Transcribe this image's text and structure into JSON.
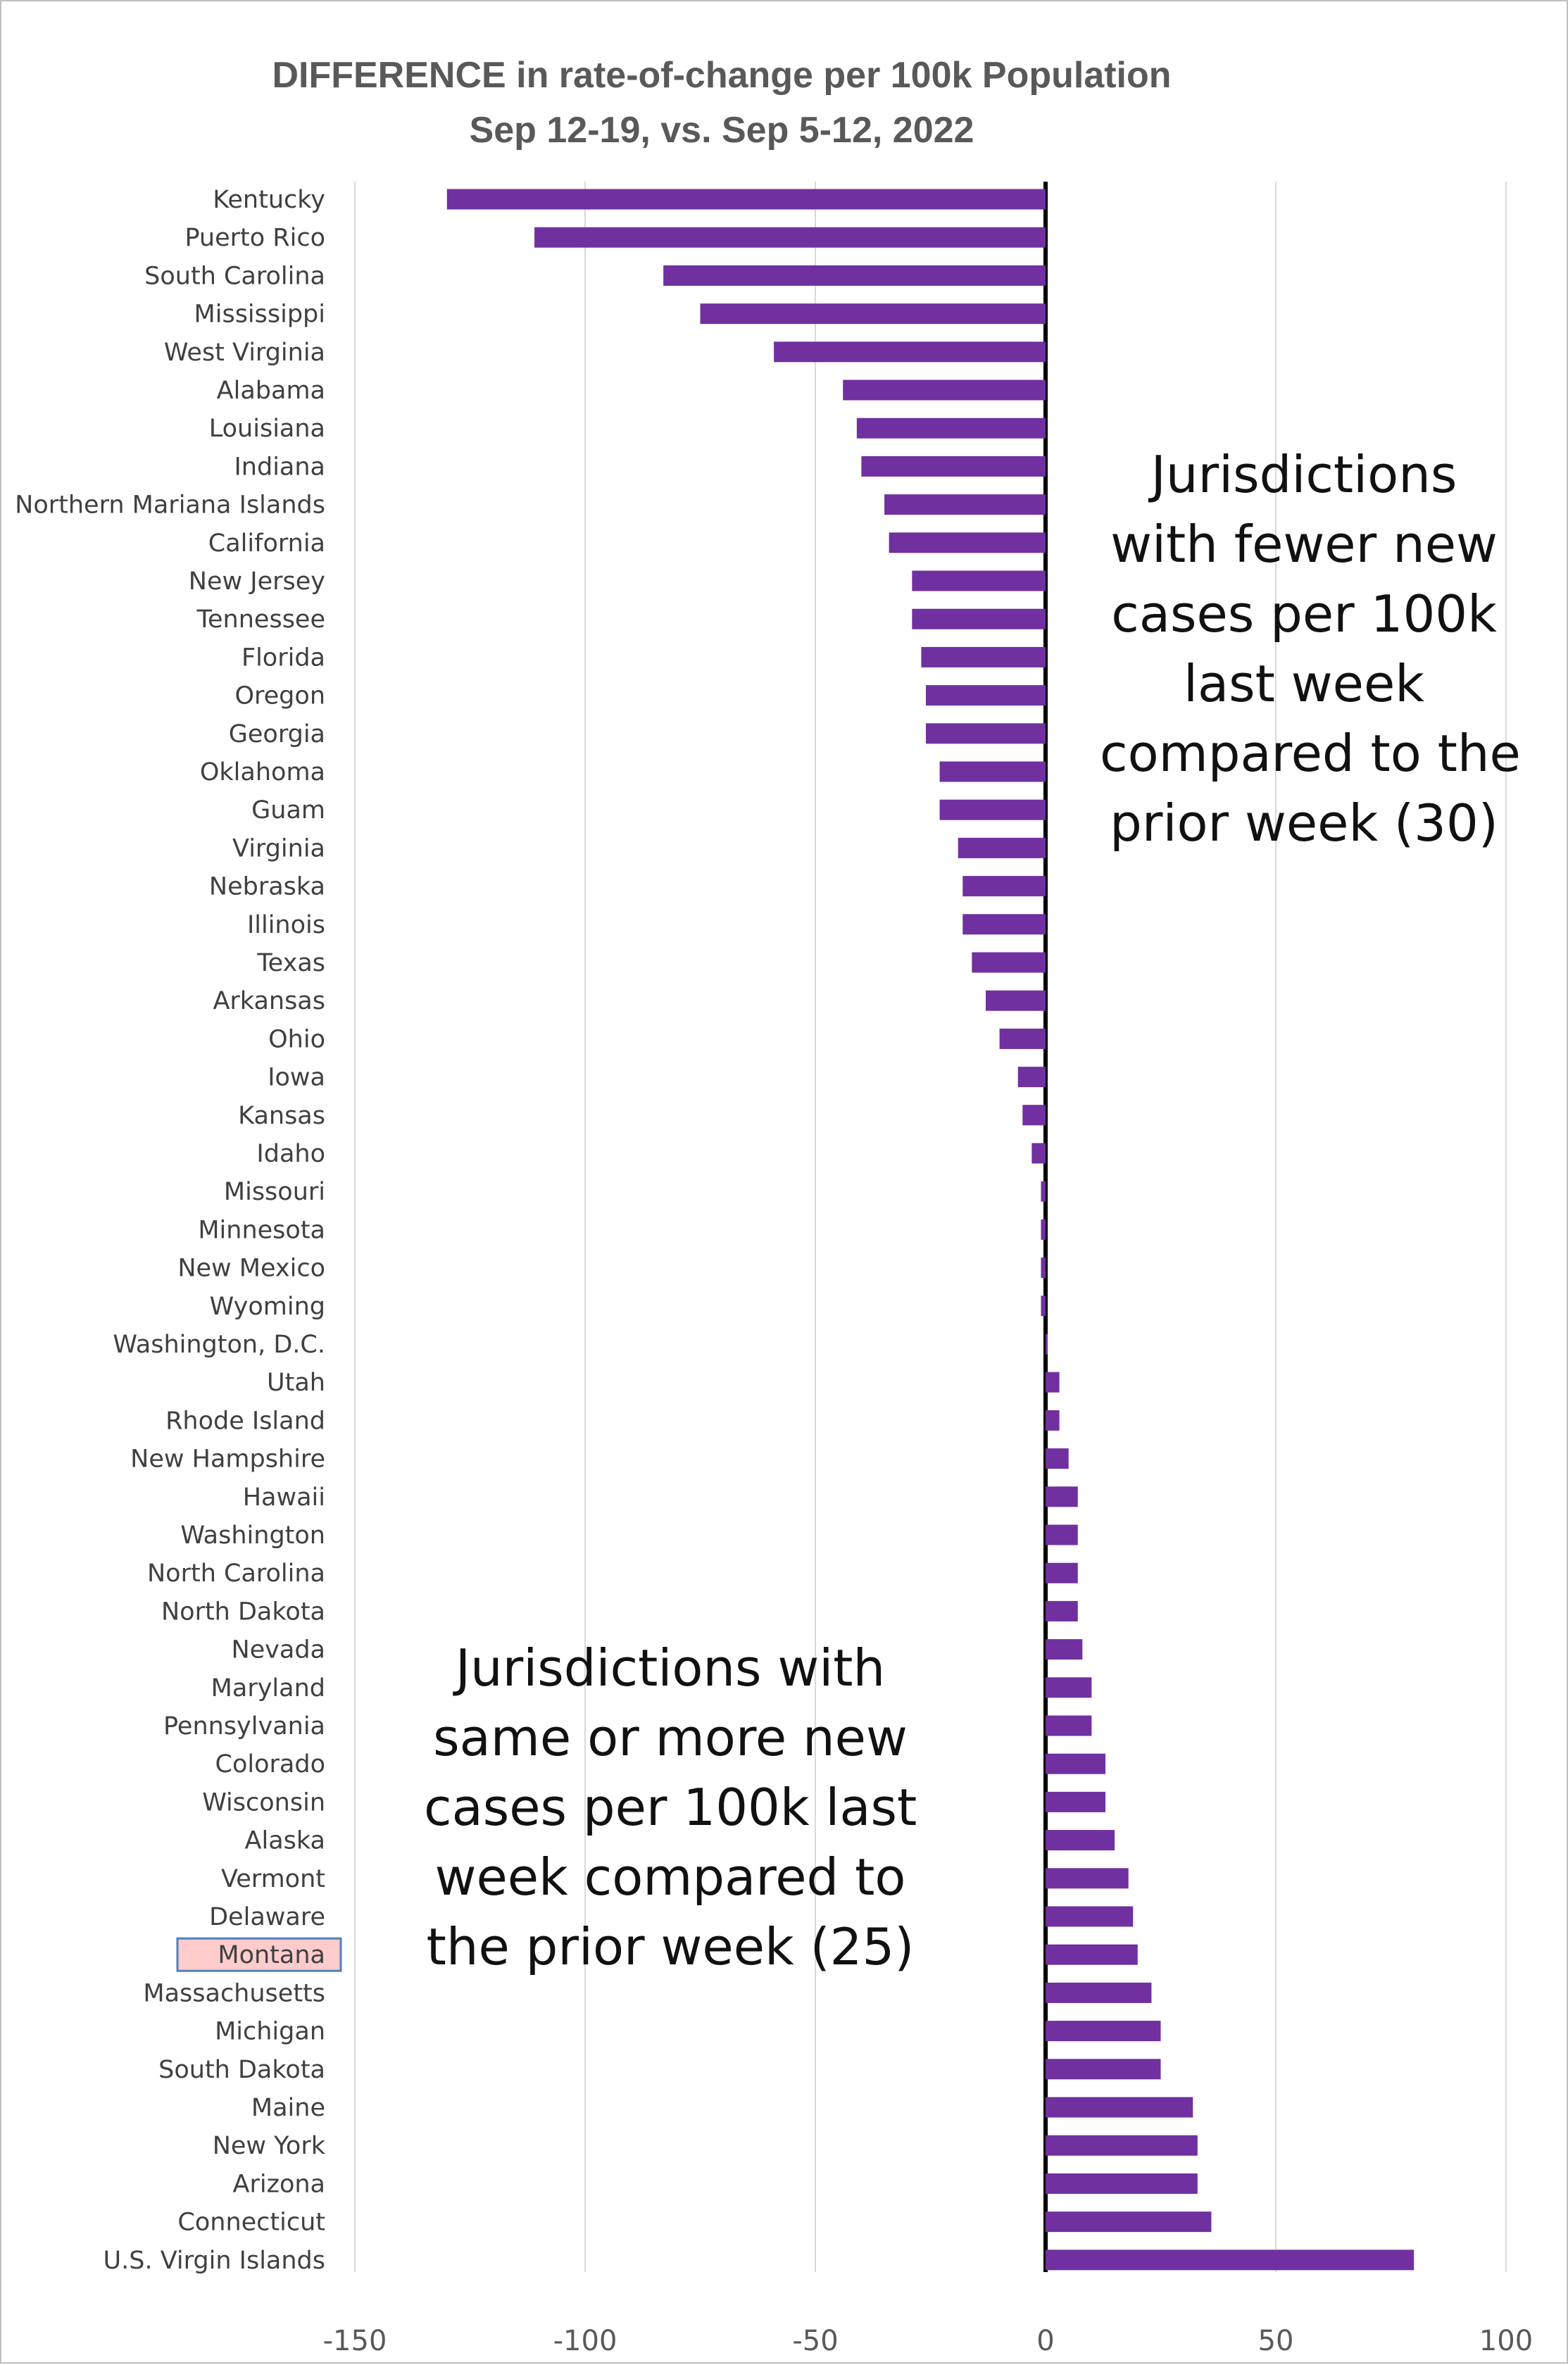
{
  "chart_data": {
    "type": "bar",
    "orientation": "horizontal",
    "title": "DIFFERENCE in rate-of-change per 100k Population",
    "subtitle": "Sep 12-19, vs. Sep 5-12, 2022",
    "xlabel": "",
    "ylabel": "",
    "xlim": [
      -150,
      100
    ],
    "xticks": [
      -150,
      -100,
      -50,
      0,
      50,
      100
    ],
    "grid": true,
    "bar_color": "#7030a0",
    "highlight_fill": "#ffcccc",
    "highlight_border": "#4f81bd",
    "highlighted_category": "Montana",
    "categories": [
      "Kentucky",
      "Puerto Rico",
      "South Carolina",
      "Mississippi",
      "West Virginia",
      "Alabama",
      "Louisiana",
      "Indiana",
      "Northern Mariana Islands",
      "California",
      "New Jersey",
      "Tennessee",
      "Florida",
      "Oregon",
      "Georgia",
      "Oklahoma",
      "Guam",
      "Virginia",
      "Nebraska",
      "Illinois",
      "Texas",
      "Arkansas",
      "Ohio",
      "Iowa",
      "Kansas",
      "Idaho",
      "Missouri",
      "Minnesota",
      "New Mexico",
      "Wyoming",
      "Washington, D.C.",
      "Utah",
      "Rhode Island",
      "New Hampshire",
      "Hawaii",
      "Washington",
      "North Carolina",
      "North Dakota",
      "Nevada",
      "Maryland",
      "Pennsylvania",
      "Colorado",
      "Wisconsin",
      "Alaska",
      "Vermont",
      "Delaware",
      "Montana",
      "Massachusetts",
      "Michigan",
      "South Dakota",
      "Maine",
      "New York",
      "Arizona",
      "Connecticut",
      "U.S. Virgin Islands"
    ],
    "values": [
      -130,
      -111,
      -83,
      -75,
      -59,
      -44,
      -41,
      -40,
      -35,
      -34,
      -29,
      -29,
      -27,
      -26,
      -26,
      -23,
      -23,
      -19,
      -18,
      -18,
      -16,
      -13,
      -10,
      -6,
      -5,
      -3,
      -1,
      -1,
      -1,
      -1,
      0,
      3,
      3,
      5,
      7,
      7,
      7,
      7,
      8,
      10,
      10,
      13,
      13,
      15,
      18,
      19,
      20,
      23,
      25,
      25,
      32,
      33,
      33,
      36,
      80
    ]
  },
  "annotations": {
    "fewer": [
      "Jurisdictions",
      "with fewer new",
      "cases per 100k",
      "last week",
      "compared to the",
      "prior week (30)"
    ],
    "more": [
      "Jurisdictions with",
      "same or more new",
      "cases per 100k last",
      "week compared to",
      "the prior week (25)"
    ]
  }
}
